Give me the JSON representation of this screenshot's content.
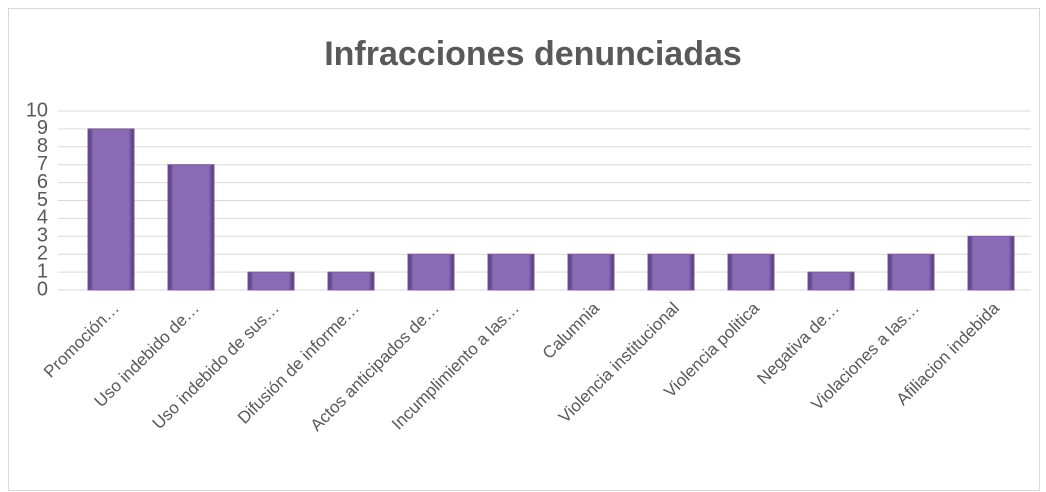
{
  "chart_data": {
    "type": "bar",
    "title": "Infracciones denunciadas",
    "categories": [
      "Promoción…",
      "Uso indebido de…",
      "Uso indebido de sus…",
      "Difusión de informe…",
      "Actos anticipados de…",
      "Incumplimiento a las…",
      "Calumnia",
      "Violencia institucional",
      "Violencia politica",
      "Negativa de…",
      "Violaciones a las…",
      "Afiliacion indebida"
    ],
    "values": [
      9,
      7,
      1,
      1,
      2,
      2,
      2,
      2,
      2,
      1,
      2,
      3
    ],
    "color": "#7b5aa6",
    "ylim": [
      0,
      10
    ],
    "yticks": [
      0,
      1,
      2,
      3,
      4,
      5,
      6,
      7,
      8,
      9,
      10
    ],
    "grid": true
  }
}
